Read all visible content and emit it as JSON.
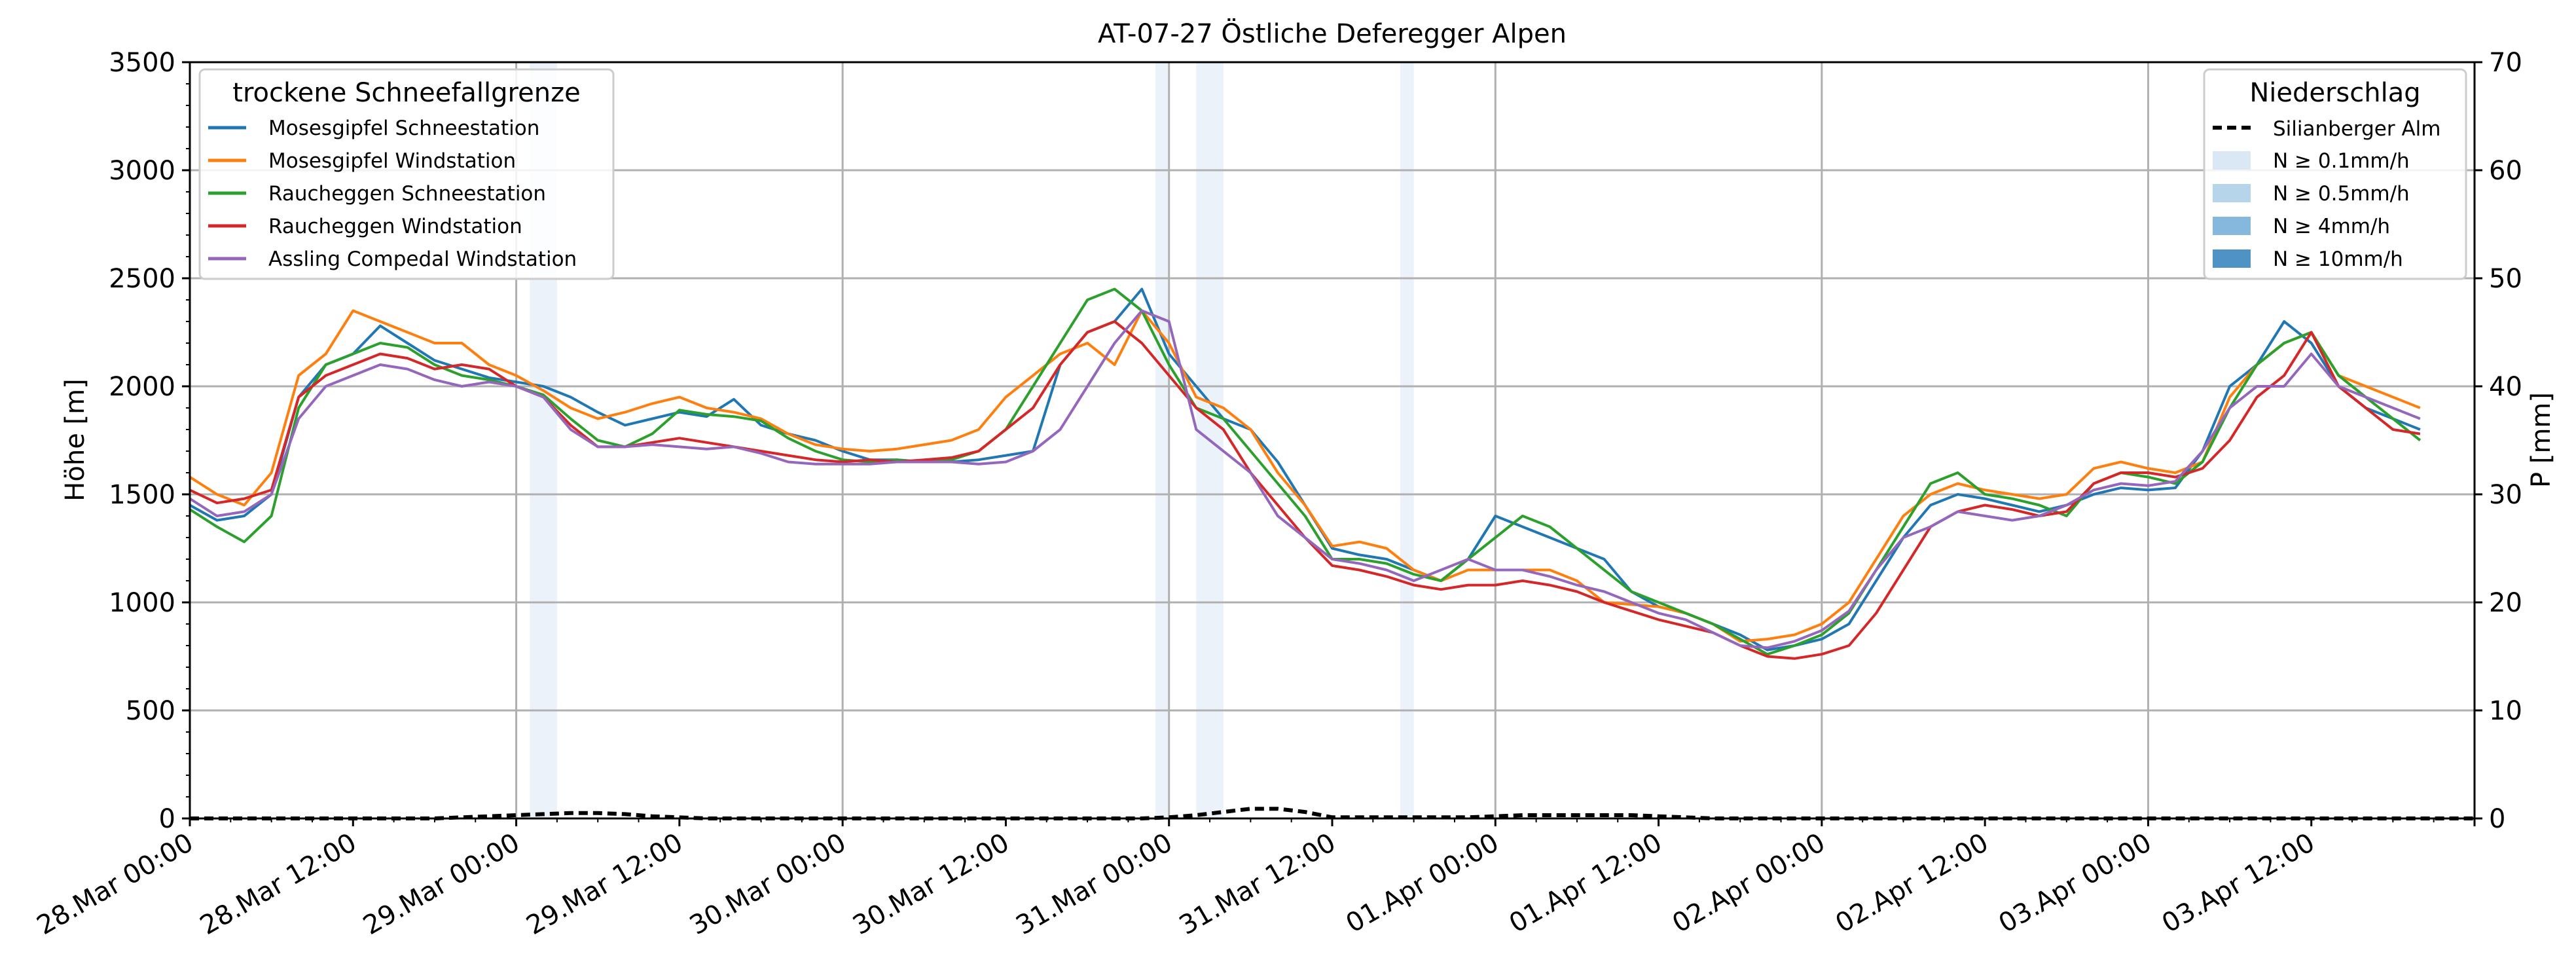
{
  "chart_data": {
    "type": "line",
    "title": "AT-07-27 Östliche Deferegger Alpen",
    "ylabel": "Höhe [m]",
    "y2label": "P [mm]",
    "xlim": [
      "28.Mar 00:00",
      "04.Apr 00:00"
    ],
    "ylim": [
      0,
      3500
    ],
    "y2lim": [
      0,
      70
    ],
    "grid": true,
    "x_ticks": [
      "28.Mar 00:00",
      "28.Mar 12:00",
      "29.Mar 00:00",
      "29.Mar 12:00",
      "30.Mar 00:00",
      "30.Mar 12:00",
      "31.Mar 00:00",
      "31.Mar 12:00",
      "01.Apr 00:00",
      "01.Apr 12:00",
      "02.Apr 00:00",
      "02.Apr 12:00",
      "03.Apr 00:00",
      "03.Apr 12:00"
    ],
    "y_ticks": [
      0,
      500,
      1000,
      1500,
      2000,
      2500,
      3000,
      3500
    ],
    "y2_ticks": [
      0,
      10,
      20,
      30,
      40,
      50,
      60,
      70
    ],
    "legend_left": {
      "title": "trockene Schneefallgrenze",
      "placement": "top-left"
    },
    "legend_right": {
      "title": "Niederschlag",
      "placement": "top-right",
      "precip_line": "Silianberger Alm",
      "bands": [
        {
          "label": "N ≥ 0.1mm/h",
          "color": "#dae8f5"
        },
        {
          "label": "N ≥ 0.5mm/h",
          "color": "#b6d4ea"
        },
        {
          "label": "N ≥ 4mm/h",
          "color": "#85b8dc"
        },
        {
          "label": "N ≥ 10mm/h",
          "color": "#4f93c6"
        }
      ]
    },
    "precip_bands": [
      {
        "start": "29.Mar 01:00",
        "end": "29.Mar 03:00",
        "level": "N ≥ 0.1mm/h"
      },
      {
        "start": "30.Mar 23:00",
        "end": "31.Mar 00:00",
        "level": "N ≥ 0.1mm/h"
      },
      {
        "start": "31.Mar 02:00",
        "end": "31.Mar 04:00",
        "level": "N ≥ 0.1mm/h"
      },
      {
        "start": "31.Mar 17:00",
        "end": "31.Mar 18:00",
        "level": "N ≥ 0.1mm/h"
      }
    ],
    "precip_series": {
      "name": "Silianberger Alm",
      "color": "#000000",
      "x_hours": [
        0,
        18,
        20,
        22,
        24,
        26,
        28,
        30,
        32,
        34,
        38,
        70,
        72,
        74,
        76,
        78,
        80,
        82,
        84,
        86,
        88,
        90,
        92,
        94,
        96,
        98,
        100,
        102,
        104,
        106,
        108,
        110,
        112,
        116,
        168
      ],
      "values": [
        0,
        0,
        0.1,
        0.2,
        0.3,
        0.4,
        0.5,
        0.5,
        0.4,
        0.2,
        0,
        0,
        0.1,
        0.3,
        0.6,
        0.9,
        0.9,
        0.6,
        0.1,
        0.1,
        0.1,
        0.1,
        0.1,
        0.1,
        0.2,
        0.3,
        0.3,
        0.3,
        0.3,
        0.3,
        0.2,
        0.1,
        0,
        0,
        0
      ]
    },
    "series": [
      {
        "name": "Mosesgipfel Schneestation",
        "color": "#1f77b4",
        "x_hours": [
          0,
          2,
          4,
          6,
          8,
          10,
          12,
          14,
          16,
          18,
          20,
          22,
          24,
          26,
          28,
          30,
          32,
          34,
          36,
          38,
          40,
          42,
          44,
          46,
          48,
          50,
          52,
          54,
          56,
          58,
          60,
          62,
          64,
          66,
          68,
          70,
          72,
          74,
          76,
          78,
          80,
          82,
          84,
          86,
          88,
          90,
          92,
          94,
          96,
          98,
          100,
          102,
          104,
          106,
          108,
          110,
          112,
          114,
          116,
          118,
          120,
          122,
          124,
          126,
          128,
          130,
          132,
          134,
          136,
          138,
          140,
          142,
          144,
          146,
          148,
          150,
          152,
          154,
          156,
          158,
          160,
          162,
          164
        ],
        "values": [
          1450,
          1380,
          1400,
          1500,
          1950,
          2100,
          2150,
          2280,
          2200,
          2120,
          2080,
          2040,
          2020,
          2000,
          1950,
          1880,
          1820,
          1850,
          1880,
          1860,
          1940,
          1820,
          1780,
          1750,
          1700,
          1660,
          1660,
          1650,
          1650,
          1660,
          1680,
          1700,
          2100,
          2250,
          2300,
          2450,
          2150,
          2000,
          1850,
          1800,
          1650,
          1450,
          1250,
          1220,
          1200,
          1150,
          1100,
          1200,
          1400,
          1350,
          1300,
          1250,
          1200,
          1050,
          980,
          950,
          900,
          850,
          780,
          800,
          830,
          900,
          1100,
          1300,
          1450,
          1500,
          1480,
          1450,
          1420,
          1450,
          1500,
          1530,
          1520,
          1530,
          1700,
          2000,
          2100,
          2300,
          2200,
          2000,
          1900,
          1850,
          1800
        ]
      },
      {
        "name": "Mosesgipfel Windstation",
        "color": "#ff7f0e",
        "x_hours": [
          0,
          2,
          4,
          6,
          8,
          10,
          12,
          14,
          16,
          18,
          20,
          22,
          24,
          26,
          28,
          30,
          32,
          34,
          36,
          38,
          40,
          42,
          44,
          46,
          48,
          50,
          52,
          54,
          56,
          58,
          60,
          62,
          64,
          66,
          68,
          70,
          72,
          74,
          76,
          78,
          80,
          82,
          84,
          86,
          88,
          90,
          92,
          94,
          96,
          98,
          100,
          102,
          104,
          106,
          108,
          110,
          112,
          114,
          116,
          118,
          120,
          122,
          124,
          126,
          128,
          130,
          132,
          134,
          136,
          138,
          140,
          142,
          144,
          146,
          148,
          150,
          152,
          154,
          156,
          158,
          160,
          162,
          164
        ],
        "values": [
          1580,
          1500,
          1450,
          1600,
          2050,
          2150,
          2350,
          2300,
          2250,
          2200,
          2200,
          2100,
          2050,
          1980,
          1900,
          1850,
          1880,
          1920,
          1950,
          1900,
          1880,
          1850,
          1780,
          1730,
          1710,
          1700,
          1710,
          1730,
          1750,
          1800,
          1950,
          2050,
          2150,
          2200,
          2100,
          2350,
          2200,
          1950,
          1900,
          1800,
          1600,
          1450,
          1260,
          1280,
          1250,
          1150,
          1100,
          1150,
          1150,
          1150,
          1150,
          1100,
          1000,
          990,
          980,
          950,
          900,
          820,
          830,
          850,
          900,
          1000,
          1200,
          1400,
          1500,
          1550,
          1520,
          1500,
          1480,
          1500,
          1620,
          1650,
          1620,
          1600,
          1650,
          1950,
          2100,
          2200,
          2250,
          2050,
          2000,
          1950,
          1900
        ]
      },
      {
        "name": "Raucheggen Schneestation",
        "color": "#2ca02c",
        "x_hours": [
          0,
          2,
          4,
          6,
          8,
          10,
          12,
          14,
          16,
          18,
          20,
          22,
          24,
          26,
          28,
          30,
          32,
          34,
          36,
          38,
          40,
          42,
          44,
          46,
          48,
          50,
          52,
          54,
          56,
          58,
          60,
          62,
          64,
          66,
          68,
          70,
          72,
          74,
          76,
          78,
          80,
          82,
          84,
          86,
          88,
          90,
          92,
          94,
          96,
          98,
          100,
          102,
          104,
          106,
          108,
          110,
          112,
          114,
          116,
          118,
          120,
          122,
          124,
          126,
          128,
          130,
          132,
          134,
          136,
          138,
          140,
          142,
          144,
          146,
          148,
          150,
          152,
          154,
          156,
          158,
          160,
          162,
          164
        ],
        "values": [
          1430,
          1350,
          1280,
          1400,
          1900,
          2100,
          2150,
          2200,
          2180,
          2100,
          2050,
          2030,
          2000,
          1960,
          1850,
          1750,
          1720,
          1780,
          1890,
          1870,
          1860,
          1840,
          1760,
          1700,
          1660,
          1650,
          1660,
          1650,
          1660,
          1700,
          1800,
          2000,
          2200,
          2400,
          2450,
          2350,
          2100,
          1900,
          1850,
          1700,
          1550,
          1400,
          1200,
          1200,
          1180,
          1130,
          1100,
          1200,
          1300,
          1400,
          1350,
          1250,
          1150,
          1050,
          1000,
          950,
          900,
          830,
          760,
          800,
          850,
          950,
          1150,
          1350,
          1550,
          1600,
          1500,
          1480,
          1450,
          1400,
          1550,
          1600,
          1580,
          1550,
          1650,
          1900,
          2100,
          2200,
          2250,
          2050,
          1950,
          1850,
          1750
        ]
      },
      {
        "name": "Raucheggen Windstation",
        "color": "#d62728",
        "x_hours": [
          0,
          2,
          4,
          6,
          8,
          10,
          12,
          14,
          16,
          18,
          20,
          22,
          24,
          26,
          28,
          30,
          32,
          34,
          36,
          38,
          40,
          42,
          44,
          46,
          48,
          50,
          52,
          54,
          56,
          58,
          60,
          62,
          64,
          66,
          68,
          70,
          72,
          74,
          76,
          78,
          80,
          82,
          84,
          86,
          88,
          90,
          92,
          94,
          96,
          98,
          100,
          102,
          104,
          106,
          108,
          110,
          112,
          114,
          116,
          118,
          120,
          122,
          124,
          126,
          128,
          130,
          132,
          134,
          136,
          138,
          140,
          142,
          144,
          146,
          148,
          150,
          152,
          154,
          156,
          158,
          160,
          162,
          164
        ],
        "values": [
          1520,
          1460,
          1480,
          1520,
          1950,
          2050,
          2100,
          2150,
          2130,
          2080,
          2100,
          2080,
          2000,
          1950,
          1820,
          1720,
          1720,
          1740,
          1760,
          1740,
          1720,
          1700,
          1680,
          1660,
          1650,
          1660,
          1650,
          1660,
          1670,
          1700,
          1800,
          1900,
          2100,
          2250,
          2300,
          2200,
          2050,
          1900,
          1800,
          1600,
          1450,
          1300,
          1170,
          1150,
          1120,
          1080,
          1060,
          1080,
          1080,
          1100,
          1080,
          1050,
          1000,
          960,
          920,
          890,
          860,
          800,
          750,
          740,
          760,
          800,
          950,
          1150,
          1350,
          1420,
          1450,
          1430,
          1400,
          1420,
          1550,
          1600,
          1600,
          1580,
          1620,
          1750,
          1950,
          2050,
          2250,
          2000,
          1900,
          1800,
          1780
        ]
      },
      {
        "name": "Assling Compedal Windstation",
        "color": "#9467bd",
        "x_hours": [
          0,
          2,
          4,
          6,
          8,
          10,
          12,
          14,
          16,
          18,
          20,
          22,
          24,
          26,
          28,
          30,
          32,
          34,
          36,
          38,
          40,
          42,
          44,
          46,
          48,
          50,
          52,
          54,
          56,
          58,
          60,
          62,
          64,
          66,
          68,
          70,
          72,
          74,
          76,
          78,
          80,
          82,
          84,
          86,
          88,
          90,
          92,
          94,
          96,
          98,
          100,
          102,
          104,
          106,
          108,
          110,
          112,
          114,
          116,
          118,
          120,
          122,
          124,
          126,
          128,
          130,
          132,
          134,
          136,
          138,
          140,
          142,
          144,
          146,
          148,
          150,
          152,
          154,
          156,
          158,
          160,
          162,
          164
        ],
        "values": [
          1480,
          1400,
          1420,
          1500,
          1850,
          2000,
          2050,
          2100,
          2080,
          2030,
          2000,
          2020,
          2000,
          1950,
          1800,
          1720,
          1720,
          1730,
          1720,
          1710,
          1720,
          1690,
          1650,
          1640,
          1640,
          1640,
          1650,
          1650,
          1650,
          1640,
          1650,
          1700,
          1800,
          2000,
          2200,
          2350,
          2300,
          1800,
          1700,
          1600,
          1400,
          1300,
          1200,
          1180,
          1150,
          1100,
          1150,
          1200,
          1150,
          1150,
          1120,
          1080,
          1050,
          1000,
          950,
          920,
          860,
          800,
          790,
          820,
          870,
          960,
          1150,
          1300,
          1350,
          1420,
          1400,
          1380,
          1400,
          1450,
          1520,
          1550,
          1540,
          1560,
          1700,
          1900,
          2000,
          2000,
          2150,
          2000,
          1950,
          1900,
          1850
        ]
      }
    ]
  }
}
